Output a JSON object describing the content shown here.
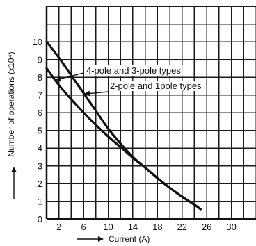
{
  "chart_data": {
    "type": "line",
    "xlabel": "Current (A)",
    "ylabel": "Number of operations (x10⁴)",
    "xlim": [
      0,
      34
    ],
    "ylim": [
      0,
      12
    ],
    "x_ticks": [
      2,
      6,
      10,
      14,
      18,
      22,
      26,
      30
    ],
    "y_ticks": [
      0,
      1,
      2,
      3,
      4,
      5,
      6,
      7,
      8,
      9,
      10
    ],
    "grid": true,
    "series": [
      {
        "name": "4-pole and 3-pole types",
        "x": [
          0,
          2,
          4,
          6,
          8,
          10,
          12,
          14,
          16,
          18,
          20,
          22,
          24,
          25
        ],
        "values": [
          10,
          9.1,
          8.1,
          7.1,
          6.1,
          5.1,
          4.25,
          3.5,
          2.9,
          2.3,
          1.75,
          1.25,
          0.8,
          0.55
        ]
      },
      {
        "name": "2-pole and 1pole types",
        "x": [
          0,
          2,
          4,
          6,
          8,
          10,
          12,
          14,
          16,
          18,
          20,
          22,
          24,
          25
        ],
        "values": [
          8.5,
          7.55,
          6.75,
          6.0,
          5.3,
          4.65,
          4.05,
          3.45,
          2.9,
          2.3,
          1.75,
          1.25,
          0.8,
          0.55
        ]
      }
    ]
  }
}
